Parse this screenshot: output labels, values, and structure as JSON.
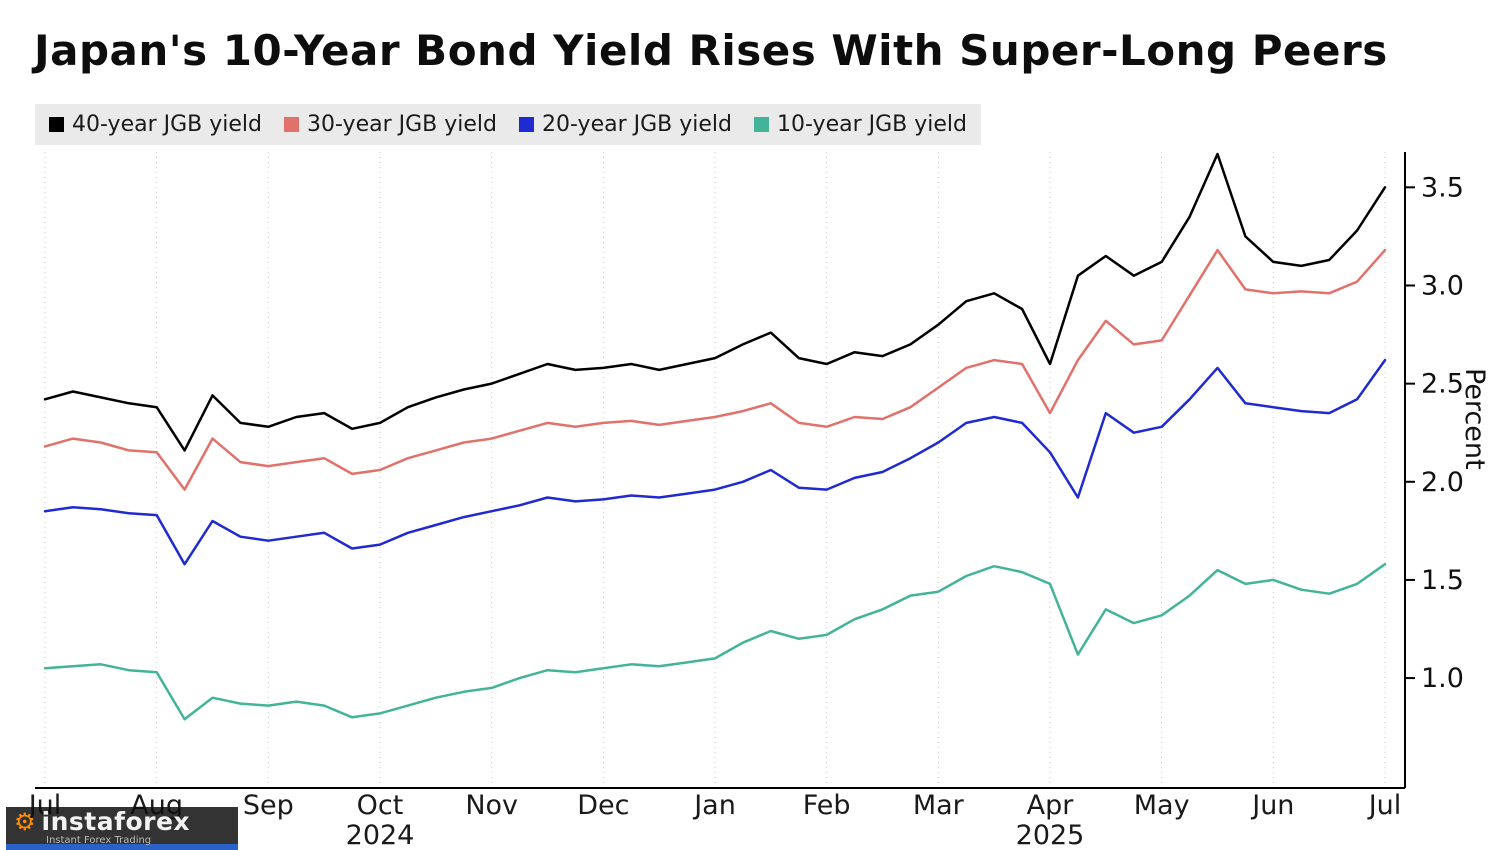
{
  "title": "Japan's 10-Year Bond Yield Rises With Super-Long Peers",
  "y_axis_label": "Percent",
  "watermark": {
    "brand": "instaforex",
    "caption": "Instant Forex Trading",
    "gear_icon_color": "#ff8c00",
    "accent_bar_color": "#2a62c9"
  },
  "chart_data": {
    "type": "line",
    "title": "Japan's 10-Year Bond Yield Rises With Super-Long Peers",
    "ylabel": "Percent",
    "xlabel": "",
    "legend_position": "top",
    "grid": "vertical-dashed",
    "x_unit": "months, uniform weekly sampling from Jul 2024 to Jul 2025",
    "x_tick_labels": [
      "Jul",
      "Aug",
      "Sep",
      "Oct",
      "Nov",
      "Dec",
      "Jan",
      "Feb",
      "Mar",
      "Apr",
      "May",
      "Jun",
      "Jul"
    ],
    "x_year_labels": [
      {
        "label": "2024",
        "tick": 3
      },
      {
        "label": "2025",
        "tick": 9
      }
    ],
    "y_ticks": [
      1.0,
      1.5,
      2.0,
      2.5,
      3.0,
      3.5
    ],
    "ylim": [
      0.44,
      3.68
    ],
    "series": [
      {
        "name": "40-year JGB yield",
        "color": "#000000",
        "values": [
          2.42,
          2.46,
          2.43,
          2.4,
          2.38,
          2.16,
          2.44,
          2.3,
          2.28,
          2.33,
          2.35,
          2.27,
          2.3,
          2.38,
          2.43,
          2.47,
          2.5,
          2.55,
          2.6,
          2.57,
          2.58,
          2.6,
          2.57,
          2.6,
          2.63,
          2.7,
          2.76,
          2.63,
          2.6,
          2.66,
          2.64,
          2.7,
          2.8,
          2.92,
          2.96,
          2.88,
          2.6,
          3.05,
          3.15,
          3.05,
          3.12,
          3.35,
          3.67,
          3.25,
          3.12,
          3.1,
          3.13,
          3.28,
          3.5
        ]
      },
      {
        "name": "30-year JGB yield",
        "color": "#e0726b",
        "values": [
          2.18,
          2.22,
          2.2,
          2.16,
          2.15,
          1.96,
          2.22,
          2.1,
          2.08,
          2.1,
          2.12,
          2.04,
          2.06,
          2.12,
          2.16,
          2.2,
          2.22,
          2.26,
          2.3,
          2.28,
          2.3,
          2.31,
          2.29,
          2.31,
          2.33,
          2.36,
          2.4,
          2.3,
          2.28,
          2.33,
          2.32,
          2.38,
          2.48,
          2.58,
          2.62,
          2.6,
          2.35,
          2.62,
          2.82,
          2.7,
          2.72,
          2.95,
          3.18,
          2.98,
          2.96,
          2.97,
          2.96,
          3.02,
          3.18
        ]
      },
      {
        "name": "20-year JGB yield",
        "color": "#1f2ad0",
        "values": [
          1.85,
          1.87,
          1.86,
          1.84,
          1.83,
          1.58,
          1.8,
          1.72,
          1.7,
          1.72,
          1.74,
          1.66,
          1.68,
          1.74,
          1.78,
          1.82,
          1.85,
          1.88,
          1.92,
          1.9,
          1.91,
          1.93,
          1.92,
          1.94,
          1.96,
          2.0,
          2.06,
          1.97,
          1.96,
          2.02,
          2.05,
          2.12,
          2.2,
          2.3,
          2.33,
          2.3,
          2.15,
          1.92,
          2.35,
          2.25,
          2.28,
          2.42,
          2.58,
          2.4,
          2.38,
          2.36,
          2.35,
          2.42,
          2.62
        ]
      },
      {
        "name": "10-year JGB yield",
        "color": "#43b49a",
        "values": [
          1.05,
          1.06,
          1.07,
          1.04,
          1.03,
          0.79,
          0.9,
          0.87,
          0.86,
          0.88,
          0.86,
          0.8,
          0.82,
          0.86,
          0.9,
          0.93,
          0.95,
          1.0,
          1.04,
          1.03,
          1.05,
          1.07,
          1.06,
          1.08,
          1.1,
          1.18,
          1.24,
          1.2,
          1.22,
          1.3,
          1.35,
          1.42,
          1.44,
          1.52,
          1.57,
          1.54,
          1.48,
          1.12,
          1.35,
          1.28,
          1.32,
          1.42,
          1.55,
          1.48,
          1.5,
          1.45,
          1.43,
          1.48,
          1.58
        ]
      }
    ]
  }
}
